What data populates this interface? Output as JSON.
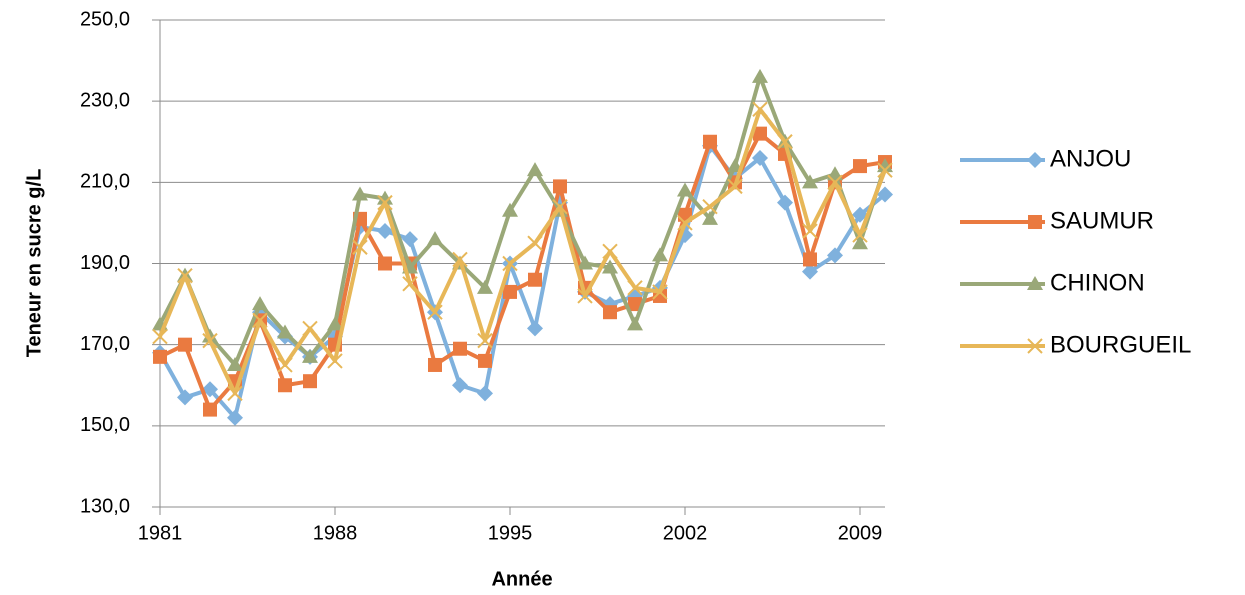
{
  "chart_data": {
    "type": "line",
    "x_label": "Année",
    "y_label": "Teneur en sucre g/L",
    "x": [
      1981,
      1982,
      1983,
      1984,
      1985,
      1986,
      1987,
      1988,
      1989,
      1990,
      1991,
      1992,
      1993,
      1994,
      1995,
      1996,
      1997,
      1998,
      1999,
      2000,
      2001,
      2002,
      2003,
      2004,
      2005,
      2006,
      2007,
      2008,
      2009,
      2010
    ],
    "xlim": [
      1981,
      2010
    ],
    "xticks": [
      1981,
      1988,
      1995,
      2002,
      2009
    ],
    "ylim": [
      130,
      250
    ],
    "yticks": [
      {
        "value": 130,
        "label": "130,0"
      },
      {
        "value": 150,
        "label": "150,0"
      },
      {
        "value": 170,
        "label": "170,0"
      },
      {
        "value": 190,
        "label": "190,0"
      },
      {
        "value": 210,
        "label": "210,0"
      },
      {
        "value": 230,
        "label": "230,0"
      },
      {
        "value": 250,
        "label": "250,0"
      }
    ],
    "grid": true,
    "legend": "right",
    "series": [
      {
        "name": "ANJOU",
        "color": "#7fb1dd",
        "marker": "diamond",
        "values": [
          168,
          157,
          159,
          152,
          178,
          172,
          167,
          172,
          199,
          198,
          196,
          178,
          160,
          158,
          190,
          174,
          205,
          183,
          180,
          182,
          184,
          197,
          219,
          211,
          216,
          205,
          188,
          192,
          202,
          207
        ]
      },
      {
        "name": "SAUMUR",
        "color": "#ea7a40",
        "marker": "square",
        "values": [
          167,
          170,
          154,
          161,
          176,
          160,
          161,
          170,
          201,
          190,
          190,
          165,
          169,
          166,
          183,
          186,
          209,
          184,
          178,
          180,
          182,
          202,
          220,
          210,
          222,
          217,
          191,
          210,
          214,
          215
        ]
      },
      {
        "name": "CHINON",
        "color": "#9aa878",
        "marker": "triangle",
        "values": [
          175,
          187,
          172,
          165,
          180,
          173,
          167,
          175,
          207,
          206,
          189,
          196,
          190,
          184,
          203,
          213,
          203,
          190,
          189,
          175,
          192,
          208,
          201,
          214,
          236,
          220,
          210,
          212,
          195,
          214
        ]
      },
      {
        "name": "BOURGUEIL",
        "color": "#e7b758",
        "marker": "x",
        "values": [
          172,
          187,
          171,
          158,
          176,
          165,
          174,
          166,
          194,
          205,
          185,
          178,
          191,
          171,
          190,
          195,
          204,
          182,
          193,
          184,
          183,
          200,
          204,
          209,
          228,
          220,
          198,
          210,
          197,
          213
        ]
      }
    ]
  }
}
